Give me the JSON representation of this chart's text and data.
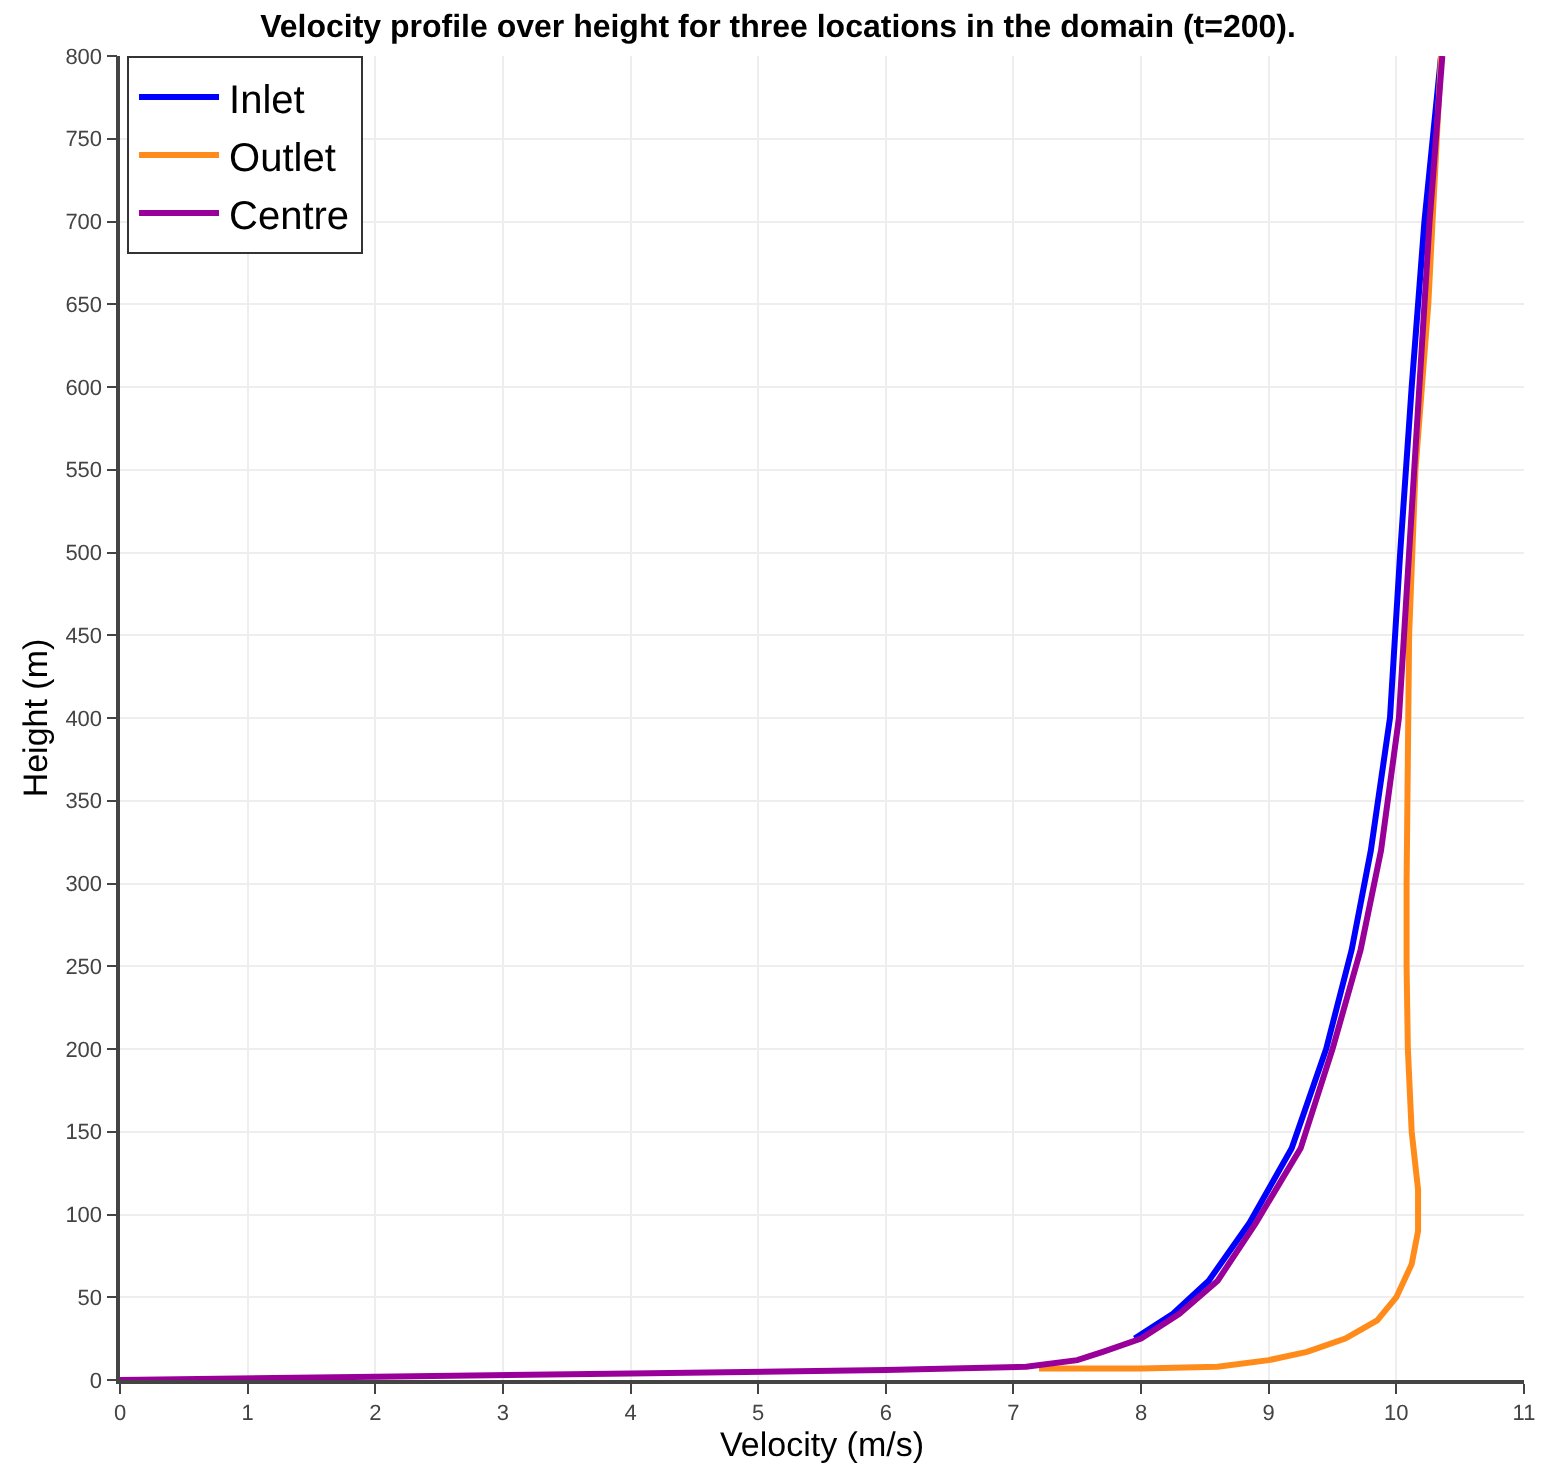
{
  "chart_data": {
    "type": "line",
    "title": "Velocity profile over height for three locations in the domain (t=200).",
    "xlabel": "Velocity (m/s)",
    "ylabel": "Height (m)",
    "xlim": [
      0,
      11
    ],
    "xticks": [
      0,
      1,
      2,
      3,
      4,
      5,
      6,
      7,
      8,
      9,
      10,
      11
    ],
    "ylim": [
      0,
      800
    ],
    "yticks": [
      0,
      50,
      100,
      150,
      200,
      250,
      300,
      350,
      400,
      450,
      500,
      550,
      600,
      650,
      700,
      750,
      800
    ],
    "grid": true,
    "legend": "top left",
    "marker": "none",
    "line_style": "solid",
    "series": [
      {
        "name": "Inlet",
        "color": "#0000ff",
        "x": [
          7.95,
          8.25,
          8.53,
          8.85,
          9.18,
          9.45,
          9.65,
          9.8,
          9.95,
          10.03,
          10.12,
          10.22,
          10.35
        ],
        "values": [
          25,
          40,
          60,
          95,
          140,
          200,
          260,
          320,
          400,
          500,
          600,
          700,
          800
        ]
      },
      {
        "name": "Outlet",
        "color": "#ff8c1a",
        "x": [
          7.2,
          8,
          8.6,
          9,
          9.3,
          9.6,
          9.85,
          10,
          10.12,
          10.17,
          10.17,
          10.12,
          10.09,
          10.08,
          10.08,
          10.1,
          10.15,
          10.25,
          10.35
        ],
        "values": [
          7,
          7,
          8,
          12,
          17,
          25,
          36,
          50,
          70,
          90,
          115,
          150,
          200,
          250,
          300,
          450,
          550,
          650,
          800
        ]
      },
      {
        "name": "Centre",
        "color": "#990099",
        "x": [
          0,
          2,
          4,
          6,
          7.1,
          7.5,
          7.7,
          8,
          8.3,
          8.6,
          8.9,
          9.25,
          9.5,
          9.72,
          9.88,
          10.02,
          10.1,
          10.18,
          10.26,
          10.36
        ],
        "values": [
          0,
          2,
          4,
          6,
          8,
          12,
          17,
          25,
          40,
          60,
          95,
          140,
          200,
          260,
          320,
          400,
          500,
          600,
          700,
          800
        ]
      }
    ]
  }
}
